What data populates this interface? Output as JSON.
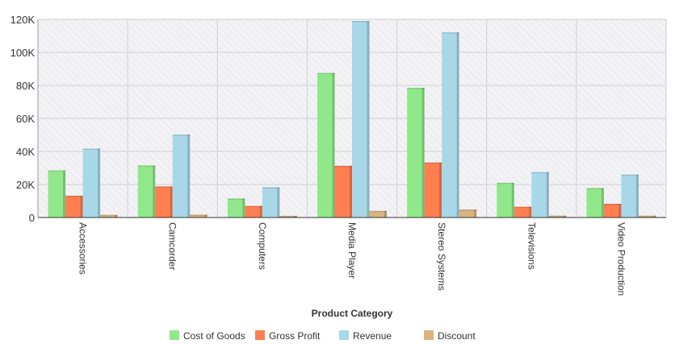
{
  "chart_data": {
    "type": "bar",
    "xlabel": "Product Category",
    "ylabel": "",
    "ylim": [
      0,
      120000
    ],
    "yticks": [
      0,
      20000,
      40000,
      60000,
      80000,
      100000,
      120000
    ],
    "ytick_labels": [
      "0",
      "20K",
      "40K",
      "60K",
      "80K",
      "100K",
      "120K"
    ],
    "grid": true,
    "legend_position": "bottom",
    "categories": [
      "Accessories",
      "Camcorder",
      "Computers",
      "Media Player",
      "Stereo Systems",
      "Televisions",
      "Video Production"
    ],
    "series": [
      {
        "name": "Cost of Goods",
        "color": "#90e88a",
        "values": [
          28500,
          31500,
          11500,
          87500,
          78500,
          21000,
          17800
        ]
      },
      {
        "name": "Gross Profit",
        "color": "#ff7f50",
        "values": [
          13200,
          18800,
          7000,
          31300,
          33300,
          6500,
          8300
        ]
      },
      {
        "name": "Revenue",
        "color": "#a8d8e8",
        "values": [
          41700,
          50200,
          18300,
          119000,
          112100,
          27500,
          26000
        ]
      },
      {
        "name": "Discount",
        "color": "#d9b380",
        "values": [
          1600,
          1700,
          1000,
          4000,
          4800,
          1100,
          1100
        ]
      }
    ]
  }
}
